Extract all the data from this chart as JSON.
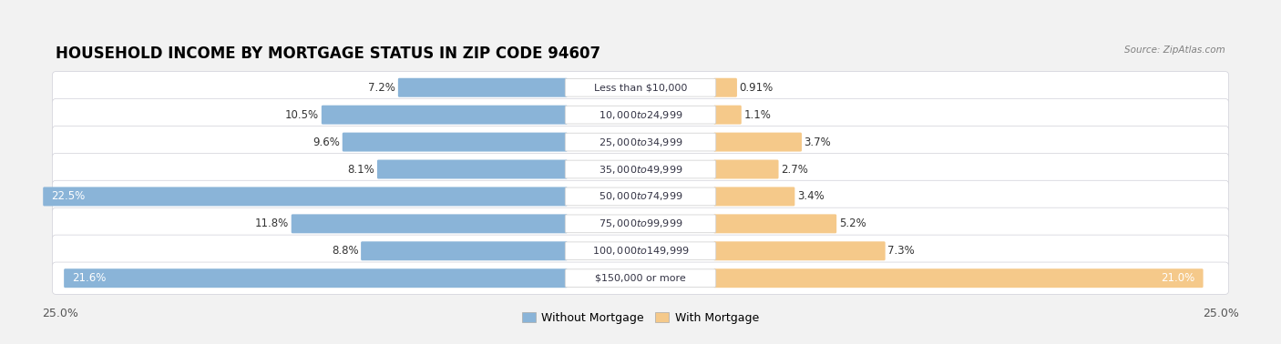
{
  "title": "HOUSEHOLD INCOME BY MORTGAGE STATUS IN ZIP CODE 94607",
  "source": "Source: ZipAtlas.com",
  "categories": [
    "Less than $10,000",
    "$10,000 to $24,999",
    "$25,000 to $34,999",
    "$35,000 to $49,999",
    "$50,000 to $74,999",
    "$75,000 to $99,999",
    "$100,000 to $149,999",
    "$150,000 or more"
  ],
  "without_mortgage": [
    7.2,
    10.5,
    9.6,
    8.1,
    22.5,
    11.8,
    8.8,
    21.6
  ],
  "with_mortgage": [
    0.91,
    1.1,
    3.7,
    2.7,
    3.4,
    5.2,
    7.3,
    21.0
  ],
  "color_without": "#8ab4d8",
  "color_with": "#f5c98a",
  "bg_color": "#f2f2f2",
  "row_bg_light": "#f8f8f8",
  "row_bg_dark": "#e8e8ec",
  "axis_limit": 25.0,
  "legend_labels": [
    "Without Mortgage",
    "With Mortgage"
  ],
  "title_fontsize": 12,
  "label_fontsize": 8.5,
  "tick_fontsize": 9,
  "value_label_fontsize": 8.5,
  "cat_label_fontsize": 8.0
}
